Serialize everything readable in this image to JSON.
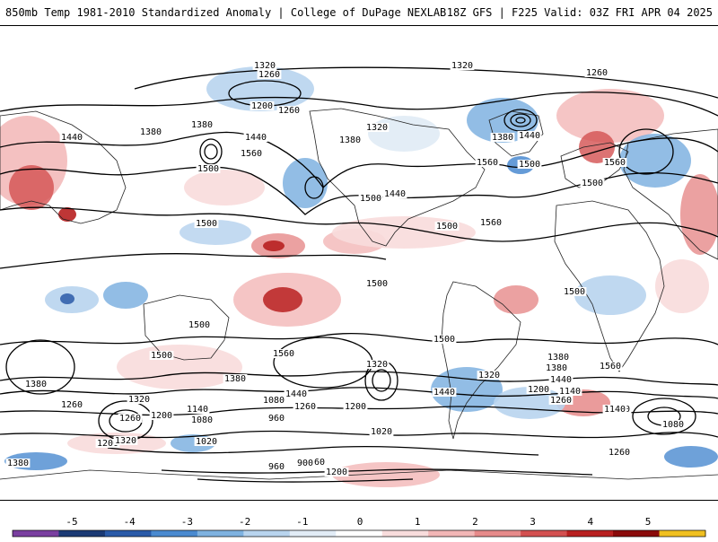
{
  "header": {
    "title": "850mb Temp 1981-2010 Standardized Anomaly | College of DuPage NEXLAB",
    "run_info": "18Z GFS | F225 Valid: 03Z FRI APR 04 2025"
  },
  "colorbar": {
    "ticks": [
      "-5",
      "-4",
      "-3",
      "-2",
      "-1",
      "0",
      "1",
      "2",
      "3",
      "4",
      "5"
    ],
    "colors": [
      "#7a3fa0",
      "#1b3a75",
      "#2a5aa8",
      "#4a8ad0",
      "#7fb2e0",
      "#b8d4ee",
      "#e2ecf6",
      "#ffffff",
      "#f8dcdc",
      "#f2b6b6",
      "#e68a8a",
      "#d35050",
      "#b82020",
      "#8a0a0a",
      "#f0c020"
    ]
  },
  "contour_labels": [
    "1320",
    "1320",
    "1260",
    "1260",
    "1200",
    "1260",
    "1380",
    "1440",
    "1380",
    "1380",
    "1500",
    "1560",
    "1440",
    "1320",
    "1320",
    "1380",
    "1500",
    "1440",
    "1560",
    "1500",
    "1560",
    "1440",
    "1500",
    "1500",
    "1500",
    "1500",
    "1560",
    "1500",
    "1560",
    "1500",
    "1500",
    "1500",
    "1320",
    "1440",
    "1380",
    "1320",
    "1260",
    "1200",
    "1140",
    "1080",
    "960",
    "1020",
    "1260",
    "1200",
    "1440",
    "1380",
    "1320",
    "1200",
    "1140",
    "1080",
    "1020",
    "1260",
    "1380",
    "1560",
    "1440",
    "1380",
    "1260",
    "1200",
    "1140",
    "1080",
    "1080",
    "1260",
    "1320",
    "1260",
    "960",
    "900",
    "1200",
    "1380"
  ]
}
